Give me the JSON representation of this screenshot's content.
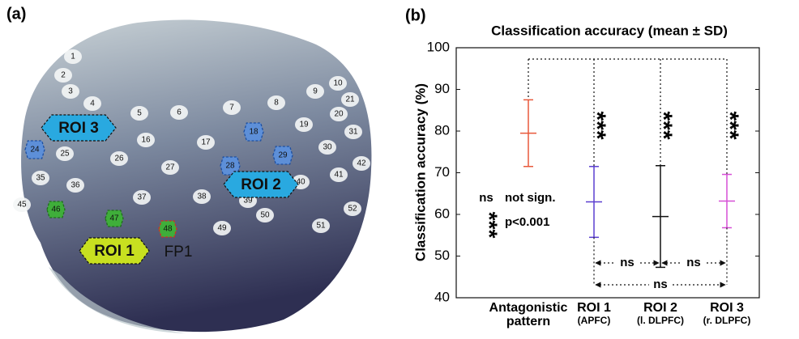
{
  "panel_a": {
    "panel_label": "(a)",
    "channels": [
      "1",
      "2",
      "3",
      "4",
      "5",
      "6",
      "7",
      "8",
      "9",
      "10",
      "21",
      "20",
      "19",
      "18",
      "17",
      "16",
      "24",
      "25",
      "26",
      "27",
      "28",
      "29",
      "30",
      "31",
      "42",
      "41",
      "40",
      "39",
      "38",
      "37",
      "36",
      "35",
      "45",
      "46",
      "47",
      "48",
      "49",
      "50",
      "51",
      "52"
    ],
    "rois": [
      "ROI 3",
      "ROI 2",
      "ROI 1"
    ],
    "reference": "FP1"
  },
  "chart_data": {
    "type": "errorbar",
    "panel_label": "(b)",
    "title": "Classification accuracy (mean ± SD)",
    "y_label": "Classification accuracy (%)",
    "categories": [
      "Antagonistic pattern",
      "ROI 1",
      "ROI 2",
      "ROI 3"
    ],
    "category_notes": [
      null,
      "(APFC)",
      "(l. DLPFC)",
      "(r. DLPFC)"
    ],
    "values": [
      79.5,
      63,
      59.5,
      63.2
    ],
    "errors": [
      8,
      8.5,
      12.2,
      6.4
    ],
    "colors": [
      "#e8583a",
      "#5b3fd0",
      "#111111",
      "#d64fd6"
    ],
    "significance": [
      null,
      "***",
      "***",
      "***"
    ],
    "comparisons": [
      "ns",
      "ns",
      "ns"
    ],
    "legend": [
      {
        "symbol": "ns",
        "text": "not sign."
      },
      {
        "symbol": "***",
        "text": "p<0.001"
      }
    ],
    "ylim": [
      40,
      100
    ],
    "yticks": [
      40,
      50,
      60,
      70,
      80,
      90,
      100
    ]
  }
}
